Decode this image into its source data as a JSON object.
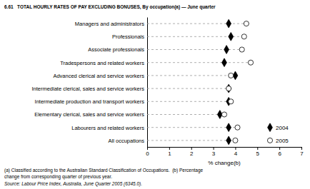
{
  "chart_data": {
    "type": "dot",
    "title": "6.61   TOTAL HOURLY RATES OF PAY EXCLUDING BONUSES, By occupation(a) — June quarter",
    "categories": [
      "Managers and administrators",
      "Professionals",
      "Associate professionals",
      "Tradespersons and related workers",
      "Advanced clerical and service workers",
      "Intermediate clerical, sales and service workers",
      "Intermediate production and transport workers",
      "Elementary clerical, sales and service workers",
      "Labourers and related workers",
      "All occupations"
    ],
    "series": [
      {
        "name": "2004",
        "color": "black",
        "marker": "diamond",
        "values": [
          3.7,
          3.8,
          3.6,
          3.5,
          4.0,
          3.7,
          3.7,
          3.3,
          3.7,
          3.7
        ]
      },
      {
        "name": "2005",
        "color": "white",
        "marker": "circle",
        "values": [
          4.5,
          4.4,
          4.3,
          4.7,
          3.8,
          3.7,
          3.8,
          3.5,
          4.1,
          4.0
        ]
      }
    ],
    "xlabel": "% change(b)",
    "xlim": [
      0,
      7
    ],
    "xticks": [
      0,
      1,
      2,
      3,
      4,
      5,
      6,
      7
    ],
    "annotations": [
      "(a) Classified according to the Australian Standard Classification of Occupations.  (b) Percentage",
      "change from corresponding quarter of previous year.",
      "Source: Labour Price Index, Australia, June Quarter 2005 (6345.0)."
    ]
  }
}
